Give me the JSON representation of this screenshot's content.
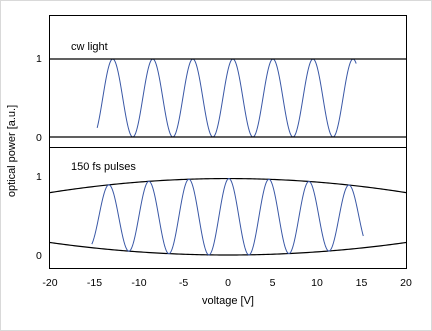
{
  "chart_data": [
    {
      "type": "line",
      "annotation": "cw light",
      "xlim": [
        -20,
        20
      ],
      "ylim": [
        -0.1,
        1.4
      ],
      "yticks": [
        0,
        1
      ],
      "series": [
        {
          "role": "signal",
          "x_range": [
            -14.7,
            14.4
          ],
          "period": 4.5,
          "peak_at": -12.95,
          "min": 0,
          "max": 1,
          "color": "#3a58a6"
        },
        {
          "role": "upper-envelope",
          "values": [
            1,
            1
          ],
          "x": [
            -20,
            20
          ],
          "color": "#000000"
        },
        {
          "role": "lower-envelope",
          "values": [
            0,
            0
          ],
          "x": [
            -20,
            20
          ],
          "color": "#000000"
        }
      ]
    },
    {
      "type": "line",
      "annotation": "150 fs pulses",
      "xlim": [
        -20,
        20
      ],
      "ylim": [
        -0.1,
        1.3
      ],
      "yticks": [
        0,
        1
      ],
      "series": [
        {
          "role": "signal",
          "x_range": [
            -15.3,
            15.2
          ],
          "period": 4.5,
          "peak_at": -13.4,
          "color": "#3a58a6"
        },
        {
          "role": "upper-envelope",
          "center": 0,
          "peak": 0.98,
          "at_xlim": 0.8,
          "color": "#000000"
        },
        {
          "role": "lower-envelope",
          "center": 0,
          "trough": 0.0,
          "at_xlim": 0.16,
          "color": "#000000"
        }
      ]
    }
  ],
  "x_axis": {
    "label": "voltage [V]",
    "ticks": [
      "-20",
      "-15",
      "-10",
      "-5",
      "0",
      "5",
      "10",
      "15",
      "20"
    ]
  },
  "y_axis": {
    "label": "optical power [a.u.]",
    "panel1_ticks": [
      "0",
      "1"
    ],
    "panel2_ticks": [
      "0",
      "1"
    ]
  }
}
